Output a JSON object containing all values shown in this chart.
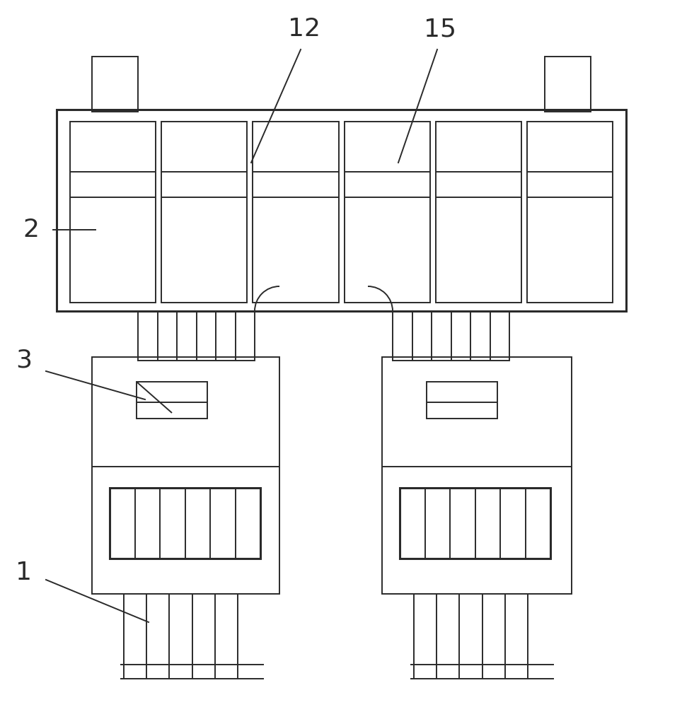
{
  "bg_color": "#ffffff",
  "line_color": "#2a2a2a",
  "lw": 1.4,
  "lw_thick": 2.2,
  "fig_w": 9.64,
  "fig_h": 10.0
}
